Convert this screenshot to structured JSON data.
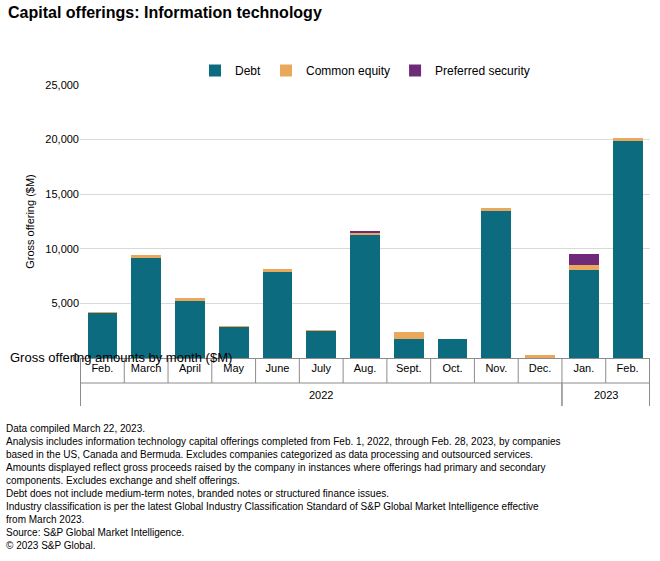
{
  "chart_data": {
    "type": "bar",
    "title": "Capital offerings: Information technology",
    "subtitle": "Gross offering amounts by month ($M)",
    "y_label": "Gross offering ($M)",
    "categories": [
      "Feb.",
      "March",
      "April",
      "May",
      "June",
      "July",
      "Aug.",
      "Sept.",
      "Oct.",
      "Nov.",
      "Dec.",
      "Jan.",
      "Feb."
    ],
    "x_groups": [
      {
        "label": "2022",
        "count": 11
      },
      {
        "label": "2023",
        "count": 2
      }
    ],
    "series": [
      {
        "name": "Debt",
        "color": "#0d6b80",
        "values": [
          4100,
          9200,
          5200,
          2850,
          7900,
          2500,
          11300,
          1750,
          1700,
          13500,
          0,
          8100,
          19900
        ]
      },
      {
        "name": "Common equity",
        "color": "#e9a85c",
        "values": [
          150,
          250,
          300,
          50,
          250,
          50,
          150,
          650,
          50,
          250,
          250,
          400,
          250
        ]
      },
      {
        "name": "Preferred security",
        "color": "#6e2a78",
        "values": [
          0,
          0,
          0,
          0,
          0,
          0,
          150,
          0,
          0,
          0,
          0,
          1000,
          0
        ]
      }
    ],
    "stacked": true,
    "ylim": [
      0,
      25000
    ],
    "yticks": [
      0,
      {
        "value": 5000,
        "label": "5,000"
      },
      {
        "value": 10000,
        "label": "10,000"
      },
      {
        "value": 15000,
        "label": "15,000"
      },
      {
        "value": 20000,
        "label": "20,000"
      },
      {
        "value": 25000,
        "label": "25,000"
      }
    ],
    "grid": true,
    "legend": "top",
    "notes": [
      "Data compiled March 22, 2023.",
      "Analysis includes information technology capital offerings completed from Feb. 1, 2022, through Feb. 28, 2023, by companies",
      "based in the US, Canada and Bermuda. Excludes companies categorized as data processing and outsourced services.",
      "Amounts displayed reflect gross proceeds raised by the company in instances where offerings had primary and secondary",
      "components. Excludes exchange and shelf offerings.",
      "Debt does not include medium-term notes, branded notes or structured finance issues.",
      "Industry classification is per the latest Global Industry Classification Standard of S&P Global Market Intelligence effective",
      "from March 2023.",
      "Source: S&P Global Market Intelligence.",
      "© 2023 S&P Global."
    ]
  }
}
